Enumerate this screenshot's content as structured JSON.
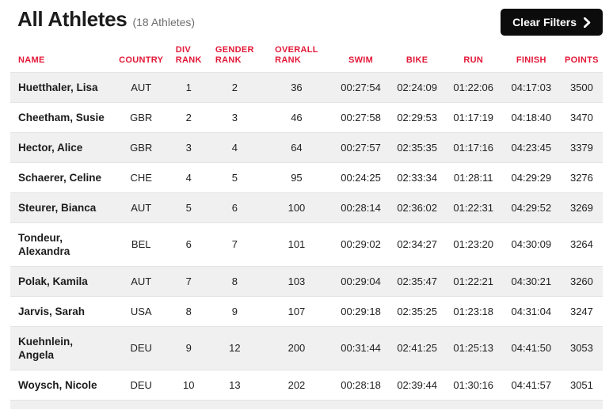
{
  "header": {
    "title": "All Athletes",
    "athlete_count": "(18 Athletes)",
    "clear_filters_label": "Clear Filters"
  },
  "table": {
    "columns": [
      {
        "key": "name",
        "label": "NAME"
      },
      {
        "key": "country",
        "label": "COUNTRY"
      },
      {
        "key": "div_rank",
        "label": "DIV\nRANK"
      },
      {
        "key": "gender_rank",
        "label": "GENDER\nRANK"
      },
      {
        "key": "overall_rank",
        "label": "OVERALL\nRANK"
      },
      {
        "key": "swim",
        "label": "SWIM"
      },
      {
        "key": "bike",
        "label": "BIKE"
      },
      {
        "key": "run",
        "label": "RUN"
      },
      {
        "key": "finish",
        "label": "FINISH"
      },
      {
        "key": "points",
        "label": "POINTS"
      }
    ],
    "rows": [
      {
        "name": "Huetthaler, Lisa",
        "country": "AUT",
        "div_rank": "1",
        "gender_rank": "2",
        "overall_rank": "36",
        "swim": "00:27:54",
        "bike": "02:24:09",
        "run": "01:22:06",
        "finish": "04:17:03",
        "points": "3500"
      },
      {
        "name": "Cheetham, Susie",
        "country": "GBR",
        "div_rank": "2",
        "gender_rank": "3",
        "overall_rank": "46",
        "swim": "00:27:58",
        "bike": "02:29:53",
        "run": "01:17:19",
        "finish": "04:18:40",
        "points": "3470"
      },
      {
        "name": "Hector, Alice",
        "country": "GBR",
        "div_rank": "3",
        "gender_rank": "4",
        "overall_rank": "64",
        "swim": "00:27:57",
        "bike": "02:35:35",
        "run": "01:17:16",
        "finish": "04:23:45",
        "points": "3379"
      },
      {
        "name": "Schaerer, Celine",
        "country": "CHE",
        "div_rank": "4",
        "gender_rank": "5",
        "overall_rank": "95",
        "swim": "00:24:25",
        "bike": "02:33:34",
        "run": "01:28:11",
        "finish": "04:29:29",
        "points": "3276"
      },
      {
        "name": "Steurer, Bianca",
        "country": "AUT",
        "div_rank": "5",
        "gender_rank": "6",
        "overall_rank": "100",
        "swim": "00:28:14",
        "bike": "02:36:02",
        "run": "01:22:31",
        "finish": "04:29:52",
        "points": "3269"
      },
      {
        "name": "Tondeur, Alexandra",
        "country": "BEL",
        "div_rank": "6",
        "gender_rank": "7",
        "overall_rank": "101",
        "swim": "00:29:02",
        "bike": "02:34:27",
        "run": "01:23:20",
        "finish": "04:30:09",
        "points": "3264"
      },
      {
        "name": "Polak, Kamila",
        "country": "AUT",
        "div_rank": "7",
        "gender_rank": "8",
        "overall_rank": "103",
        "swim": "00:29:04",
        "bike": "02:35:47",
        "run": "01:22:21",
        "finish": "04:30:21",
        "points": "3260"
      },
      {
        "name": "Jarvis, Sarah",
        "country": "USA",
        "div_rank": "8",
        "gender_rank": "9",
        "overall_rank": "107",
        "swim": "00:29:18",
        "bike": "02:35:25",
        "run": "01:23:18",
        "finish": "04:31:04",
        "points": "3247"
      },
      {
        "name": "Kuehnlein, Angela",
        "country": "DEU",
        "div_rank": "9",
        "gender_rank": "12",
        "overall_rank": "200",
        "swim": "00:31:44",
        "bike": "02:41:25",
        "run": "01:25:13",
        "finish": "04:41:50",
        "points": "3053"
      },
      {
        "name": "Woysch, Nicole",
        "country": "DEU",
        "div_rank": "10",
        "gender_rank": "13",
        "overall_rank": "202",
        "swim": "00:28:18",
        "bike": "02:39:44",
        "run": "01:30:16",
        "finish": "04:41:57",
        "points": "3051"
      }
    ]
  },
  "colors": {
    "accent_red": "#e31837",
    "button_black": "#0c0c0c",
    "row_stripe": "#f0f0f0",
    "row_border": "#e4e4e4"
  }
}
